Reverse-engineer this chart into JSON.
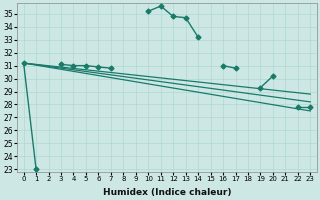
{
  "xlabel": "Humidex (Indice chaleur)",
  "bg_color": "#cde8e4",
  "grid_color": "#b0d8d0",
  "line_color": "#1a7a6a",
  "xlim": [
    -0.5,
    23.5
  ],
  "ylim": [
    22.8,
    35.8
  ],
  "yticks": [
    23,
    24,
    25,
    26,
    27,
    28,
    29,
    30,
    31,
    32,
    33,
    34,
    35
  ],
  "xticks": [
    0,
    1,
    2,
    3,
    4,
    5,
    6,
    7,
    8,
    9,
    10,
    11,
    12,
    13,
    14,
    15,
    16,
    17,
    18,
    19,
    20,
    21,
    22,
    23
  ],
  "main_series": {
    "segments": [
      {
        "x": [
          0,
          1
        ],
        "y": [
          31.2,
          23.0
        ]
      },
      {
        "x": [
          3,
          4,
          5,
          6,
          7
        ],
        "y": [
          31.1,
          31.0,
          31.0,
          30.9,
          30.8
        ]
      },
      {
        "x": [
          10,
          11,
          12,
          13,
          14
        ],
        "y": [
          35.2,
          35.6,
          34.8,
          34.7,
          33.2
        ]
      },
      {
        "x": [
          16,
          17
        ],
        "y": [
          31.0,
          30.8
        ]
      },
      {
        "x": [
          19,
          20
        ],
        "y": [
          29.3,
          30.2
        ]
      },
      {
        "x": [
          22,
          23
        ],
        "y": [
          27.8,
          27.8
        ]
      }
    ],
    "marker": "D",
    "markersize": 2.5,
    "linewidth": 1.0
  },
  "trend_lines": [
    {
      "x": [
        0,
        23
      ],
      "y": [
        31.2,
        27.5
      ],
      "linewidth": 0.9
    },
    {
      "x": [
        0,
        23
      ],
      "y": [
        31.2,
        28.2
      ],
      "linewidth": 0.9
    },
    {
      "x": [
        0,
        23
      ],
      "y": [
        31.2,
        28.8
      ],
      "linewidth": 0.9
    }
  ],
  "xlabel_fontsize": 6.5,
  "tick_labelsize": 5.5,
  "xlabel_fontweight": "bold"
}
